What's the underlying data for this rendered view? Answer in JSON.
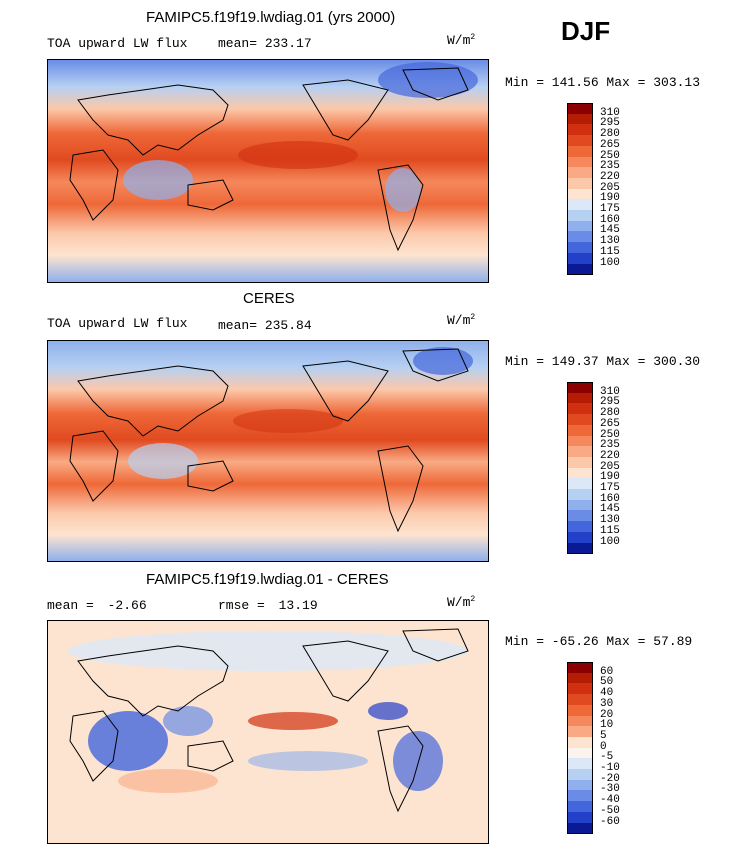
{
  "season": "DJF",
  "units_base": "W/m",
  "units_sup": "2",
  "chart_data": [
    {
      "type": "heatmap",
      "title": "FAMIPC5.f19f19.lwdiag.01 (yrs 2000)",
      "subtitle": "TOA upward LW flux",
      "mean_label": "mean=",
      "mean": "233.17",
      "minmax": "Min = 141.56 Max = 303.13",
      "min": 141.56,
      "max": 303.13,
      "levels": [
        "310",
        "295",
        "280",
        "265",
        "250",
        "235",
        "220",
        "205",
        "190",
        "175",
        "160",
        "145",
        "130",
        "115",
        "100"
      ]
    },
    {
      "type": "heatmap",
      "title": "CERES",
      "subtitle": "TOA upward LW flux",
      "mean_label": "mean=",
      "mean": "235.84",
      "minmax": "Min = 149.37 Max = 300.30",
      "min": 149.37,
      "max": 300.3,
      "levels": [
        "310",
        "295",
        "280",
        "265",
        "250",
        "235",
        "220",
        "205",
        "190",
        "175",
        "160",
        "145",
        "130",
        "115",
        "100"
      ]
    },
    {
      "type": "heatmap",
      "title": "FAMIPC5.f19f19.lwdiag.01 - CERES",
      "mean_label": "mean =",
      "mean": "-2.66",
      "rmse_label": "rmse =",
      "rmse": "13.19",
      "minmax": "Min = -65.26 Max =  57.89",
      "min": -65.26,
      "max": 57.89,
      "levels": [
        "60",
        "50",
        "40",
        "30",
        "20",
        "10",
        "5",
        "0",
        "-5",
        "-10",
        "-20",
        "-30",
        "-40",
        "-50",
        "-60"
      ]
    }
  ],
  "colors": {
    "palette_16": [
      "#8b0000",
      "#b51c04",
      "#d03010",
      "#e14a20",
      "#ee6838",
      "#f5885c",
      "#f9aa84",
      "#fcc8aa",
      "#fde4d0",
      "#dce8f7",
      "#b6d0f2",
      "#8fb0ec",
      "#6a8ce6",
      "#4466dc",
      "#2340c8",
      "#0a1a94"
    ],
    "diff_palette_16": [
      "#8b0000",
      "#b51c04",
      "#d03010",
      "#e14a20",
      "#ee6838",
      "#f5885c",
      "#f9aa84",
      "#fde4d0",
      "#fbf4ee",
      "#dce8f7",
      "#b6d0f2",
      "#8fb0ec",
      "#6a8ce6",
      "#4466dc",
      "#2340c8",
      "#0a1a94"
    ]
  }
}
